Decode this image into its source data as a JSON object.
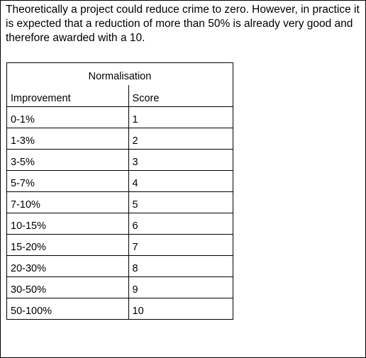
{
  "intro_text": "Theoretically a project could reduce crime to zero. However, in practice it is expected that a reduction of more than 50% is already very good and therefore awarded with a 10.",
  "table": {
    "title": "Normalisation",
    "headers": [
      "Improvement",
      "Score"
    ],
    "rows": [
      [
        "0-1%",
        "1"
      ],
      [
        "1-3%",
        "2"
      ],
      [
        "3-5%",
        "3"
      ],
      [
        "5-7%",
        "4"
      ],
      [
        "7-10%",
        "5"
      ],
      [
        "10-15%",
        "6"
      ],
      [
        "15-20%",
        "7"
      ],
      [
        "20-30%",
        "8"
      ],
      [
        "30-50%",
        "9"
      ],
      [
        "50-100%",
        "10"
      ]
    ]
  }
}
